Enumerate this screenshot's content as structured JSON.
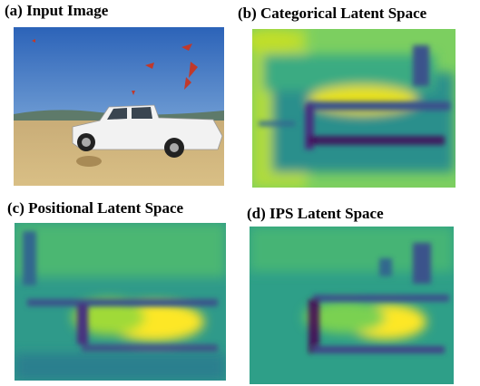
{
  "panels": [
    {
      "label": "(a) Input Image"
    },
    {
      "label": "(b) Categorical Latent Space"
    },
    {
      "label": "(c) Positional Latent Space"
    },
    {
      "label": "(d) IPS Latent Space"
    }
  ]
}
